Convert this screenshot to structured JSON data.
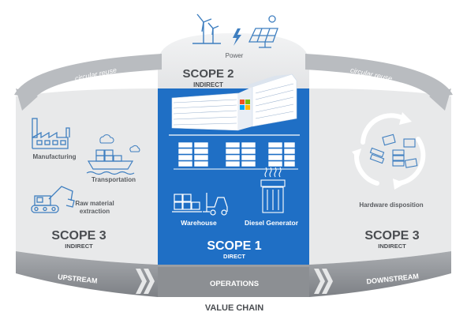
{
  "power": {
    "label": "Power"
  },
  "scope2": {
    "title": "SCOPE 2",
    "subtitle": "INDIRECT"
  },
  "scope1": {
    "title": "SCOPE 1",
    "subtitle": "DIRECT"
  },
  "scope3_left": {
    "title": "SCOPE 3",
    "subtitle": "INDIRECT"
  },
  "scope3_right": {
    "title": "SCOPE 3",
    "subtitle": "INDIRECT"
  },
  "arcs": {
    "left": "circular reuse",
    "right": "circular reuse"
  },
  "upstream_items": {
    "manufacturing": "Manufacturing",
    "transportation": "Transportation",
    "raw_line1": "Raw material",
    "raw_line2": "extraction"
  },
  "operations_items": {
    "warehouse": "Warehouse",
    "diesel": "Diesel Generator"
  },
  "downstream_items": {
    "hardware": "Hardware disposition"
  },
  "band": {
    "upstream": "UPSTREAM",
    "operations": "OPERATIONS",
    "downstream": "DOWNSTREAM"
  },
  "footer": {
    "value_chain": "VALUE CHAIN"
  },
  "colors": {
    "blue": "#1f6fc5",
    "light_gray": "#e6e7e8",
    "mid_gray": "#b9bcc0",
    "dark_gray": "#6f7276",
    "text_gray": "#5a5d61",
    "icon_blue": "#3f7fc0",
    "white": "#ffffff"
  }
}
